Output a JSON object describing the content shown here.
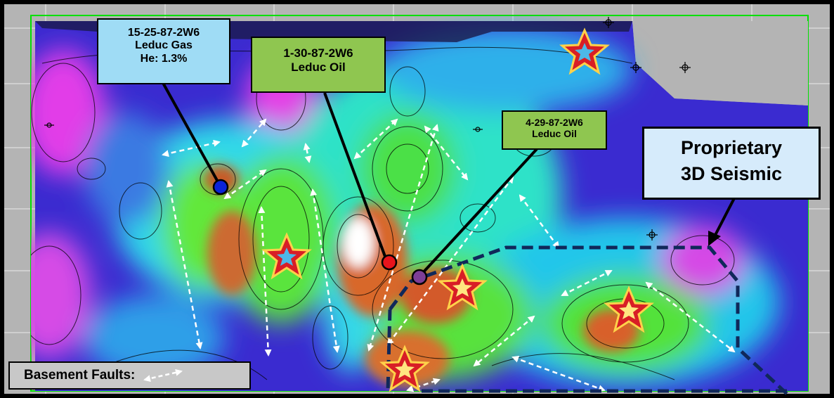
{
  "wells": [
    {
      "id": "well-15-25",
      "name": "15-25-87-2W6",
      "type": "Leduc Gas",
      "extra": "He: 1.3%",
      "color": "#0b23d8"
    },
    {
      "id": "well-1-30",
      "name": "1-30-87-2W6",
      "type": "Leduc Oil",
      "color": "#e8141c"
    },
    {
      "id": "well-4-29",
      "name": "4-29-87-2W6",
      "type": "Leduc Oil",
      "color": "#7d3e96"
    }
  ],
  "seismic_label": {
    "line1": "Proprietary",
    "line2": "3D Seismic"
  },
  "legend": {
    "label": "Basement Faults:"
  },
  "colors": {
    "map_border": "#00e000",
    "seismic_outline": "#10285a",
    "star_fill": "#d81e26",
    "star_outline": "#ffd24a",
    "grid_bg": "#b4b4b4",
    "fault_arrows": "#ffffff"
  }
}
